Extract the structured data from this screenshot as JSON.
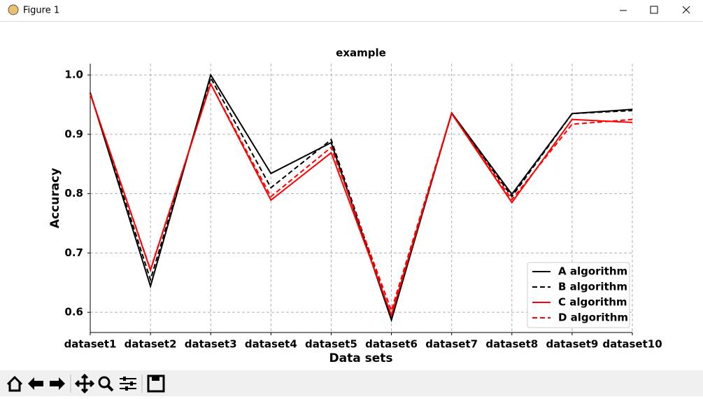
{
  "window": {
    "title": "Figure 1"
  },
  "chart_data": {
    "type": "line",
    "title": "example",
    "x_label": "Data sets",
    "y_label": "Accuracy",
    "categories": [
      "dataset1",
      "dataset2",
      "dataset3",
      "dataset4",
      "dataset5",
      "dataset6",
      "dataset7",
      "dataset8",
      "dataset9",
      "dataset10"
    ],
    "series": [
      {
        "name": "A algorithm",
        "color": "#000000",
        "linestyle": "solid",
        "values": [
          0.97,
          0.644,
          1.0,
          0.834,
          0.886,
          0.587,
          0.936,
          0.799,
          0.935,
          0.942
        ]
      },
      {
        "name": "B algorithm",
        "color": "#000000",
        "linestyle": "dashed",
        "values": [
          0.97,
          0.655,
          0.995,
          0.81,
          0.891,
          0.592,
          0.935,
          0.795,
          0.935,
          0.94
        ]
      },
      {
        "name": "C algorithm",
        "color": "#ff0000",
        "linestyle": "solid",
        "values": [
          0.968,
          0.671,
          0.985,
          0.789,
          0.869,
          0.595,
          0.935,
          0.785,
          0.925,
          0.92
        ]
      },
      {
        "name": "D algorithm",
        "color": "#ff0000",
        "linestyle": "dashed",
        "values": [
          0.968,
          0.672,
          0.985,
          0.795,
          0.878,
          0.603,
          0.935,
          0.79,
          0.917,
          0.925
        ]
      }
    ],
    "ylim": [
      0.566,
      1.019
    ],
    "yticks": [
      0.6,
      0.7,
      0.8,
      0.9,
      {
        "value": 1,
        "label": "1.0"
      }
    ],
    "grid": true,
    "legend": "lower right"
  }
}
